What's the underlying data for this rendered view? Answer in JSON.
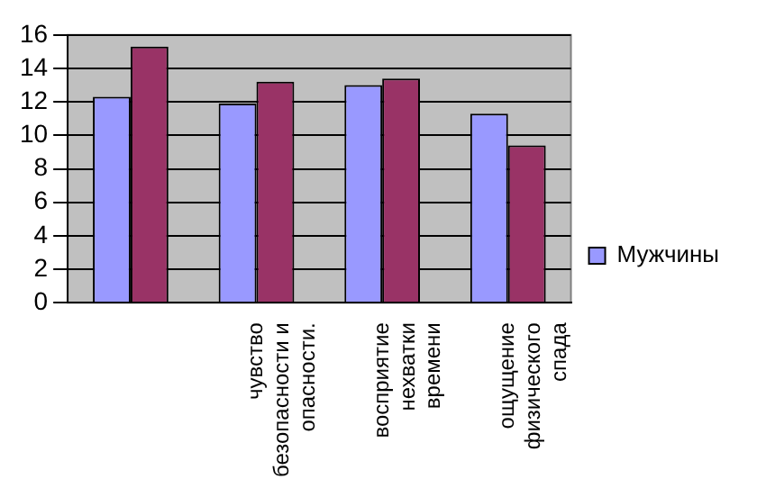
{
  "chart_data": {
    "type": "bar",
    "categories": [
      null,
      "чувство безопасности и опасности.",
      "восприятие нехватки времени",
      "ощущение физического спада"
    ],
    "series": [
      {
        "name": "Мужчины",
        "color": "#9999ff",
        "values": [
          12.3,
          11.9,
          13.0,
          11.3
        ]
      },
      {
        "color": "#993366",
        "values": [
          15.3,
          13.2,
          13.4,
          9.4
        ]
      }
    ],
    "ylim": [
      0,
      16
    ],
    "yticks": [
      0,
      2,
      4,
      6,
      8,
      10,
      12,
      14,
      16
    ],
    "grid": "y",
    "legend": "right"
  }
}
